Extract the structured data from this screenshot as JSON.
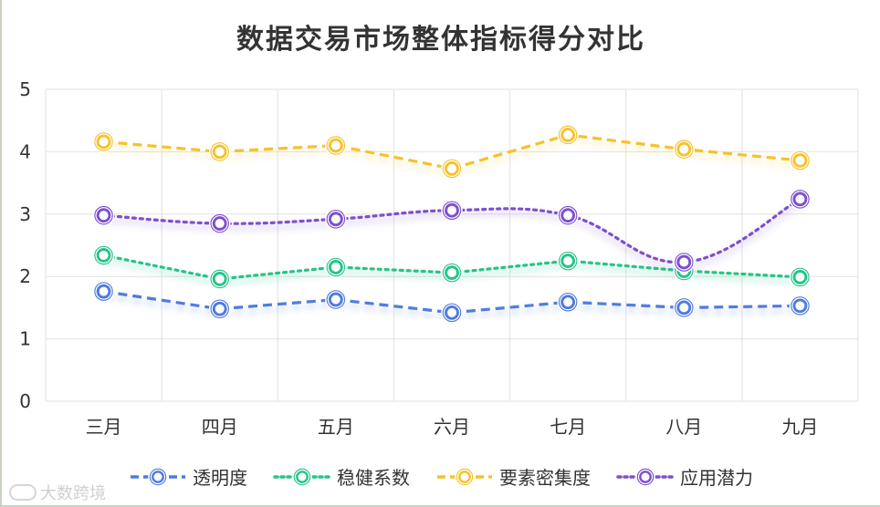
{
  "chart_data": {
    "type": "line",
    "title": "数据交易市场整体指标得分对比",
    "categories": [
      "三月",
      "四月",
      "五月",
      "六月",
      "七月",
      "八月",
      "九月"
    ],
    "ylim": [
      0,
      5
    ],
    "yticks": [
      "0",
      "1",
      "2",
      "3",
      "4",
      "5"
    ],
    "grid": true,
    "legend_position": "bottom",
    "series": [
      {
        "name": "透明度",
        "color": "#4f7be0",
        "dash": "dashed",
        "smooth": false,
        "values": [
          1.76,
          1.48,
          1.63,
          1.42,
          1.59,
          1.5,
          1.53
        ]
      },
      {
        "name": "稳健系数",
        "color": "#26c485",
        "dash": "dotted",
        "smooth": false,
        "values": [
          2.34,
          1.96,
          2.15,
          2.06,
          2.25,
          2.09,
          1.99
        ]
      },
      {
        "name": "要素密集度",
        "color": "#f5c22b",
        "dash": "dashed",
        "smooth": false,
        "values": [
          4.16,
          4.0,
          4.1,
          3.73,
          4.27,
          4.04,
          3.86
        ]
      },
      {
        "name": "应用潜力",
        "color": "#7d4fd0",
        "dash": "dotted",
        "smooth": true,
        "values": [
          2.98,
          2.85,
          2.92,
          3.06,
          2.98,
          2.23,
          3.24
        ]
      }
    ]
  },
  "watermark": {
    "text": "大数跨境"
  }
}
